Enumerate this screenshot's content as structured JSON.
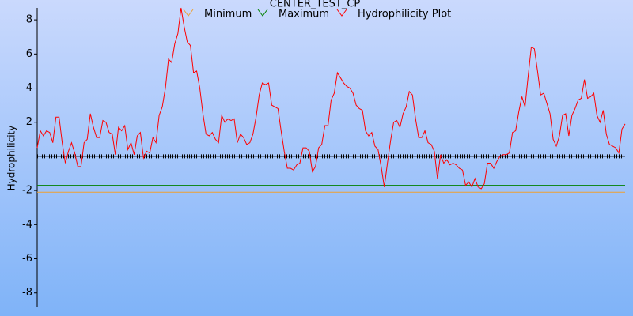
{
  "chart_data": {
    "type": "line",
    "title": "CENTER_TEST_CP",
    "y_label": "Hydrophilicity",
    "ylim": [
      -8.8,
      8.7
    ],
    "yticks": [
      -8,
      -6,
      -4,
      -2,
      2,
      4,
      6,
      8
    ],
    "series": [
      {
        "name": "Minimum",
        "color": "#f0a030",
        "value": -2.1
      },
      {
        "name": "Maximum",
        "color": "#008000",
        "value": -1.7
      },
      {
        "name": "Hydrophilicity Plot",
        "color": "#ff0000",
        "values": [
          0.5,
          1.5,
          1.2,
          1.5,
          1.4,
          0.8,
          2.3,
          2.3,
          0.8,
          -0.4,
          0.3,
          0.8,
          0.2,
          -0.6,
          -0.6,
          0.8,
          1.0,
          2.5,
          1.7,
          1.1,
          1.1,
          2.1,
          2.0,
          1.4,
          1.3,
          0.1,
          1.7,
          1.5,
          1.8,
          0.4,
          0.8,
          0.1,
          1.2,
          1.4,
          -0.1,
          0.3,
          0.2,
          1.1,
          0.8,
          2.4,
          2.9,
          4.0,
          5.7,
          5.5,
          6.6,
          7.2,
          8.7,
          7.6,
          6.7,
          6.5,
          4.9,
          5.0,
          4.0,
          2.5,
          1.3,
          1.2,
          1.4,
          1.0,
          0.8,
          2.4,
          2.0,
          2.2,
          2.1,
          2.2,
          0.8,
          1.3,
          1.1,
          0.7,
          0.8,
          1.3,
          2.3,
          3.6,
          4.3,
          4.2,
          4.3,
          3.0,
          2.9,
          2.8,
          1.5,
          0.3,
          -0.7,
          -0.7,
          -0.8,
          -0.5,
          -0.4,
          0.5,
          0.5,
          0.3,
          -0.9,
          -0.6,
          0.5,
          0.7,
          1.8,
          1.8,
          3.3,
          3.7,
          4.9,
          4.6,
          4.3,
          4.1,
          4.0,
          3.7,
          3.0,
          2.8,
          2.7,
          1.5,
          1.2,
          1.4,
          0.6,
          0.4,
          -0.6,
          -1.8,
          -0.4,
          0.9,
          2.0,
          2.1,
          1.7,
          2.5,
          2.9,
          3.8,
          3.6,
          2.2,
          1.1,
          1.1,
          1.5,
          0.8,
          0.7,
          0.3,
          -1.3,
          0.1,
          -0.4,
          -0.2,
          -0.5,
          -0.4,
          -0.5,
          -0.7,
          -0.8,
          -1.7,
          -1.5,
          -1.8,
          -1.3,
          -1.8,
          -1.9,
          -1.6,
          -0.4,
          -0.4,
          -0.7,
          -0.3,
          0.0,
          0.1,
          0.1,
          0.2,
          1.4,
          1.5,
          2.6,
          3.5,
          2.9,
          4.7,
          6.4,
          6.3,
          5.0,
          3.6,
          3.7,
          3.1,
          2.5,
          1.0,
          0.6,
          1.2,
          2.4,
          2.5,
          1.2,
          2.4,
          2.8,
          3.3,
          3.4,
          4.5,
          3.4,
          3.5,
          3.7,
          2.4,
          2.0,
          2.7,
          1.3,
          0.7,
          0.6,
          0.5,
          0.2,
          1.6,
          1.9
        ]
      }
    ]
  }
}
